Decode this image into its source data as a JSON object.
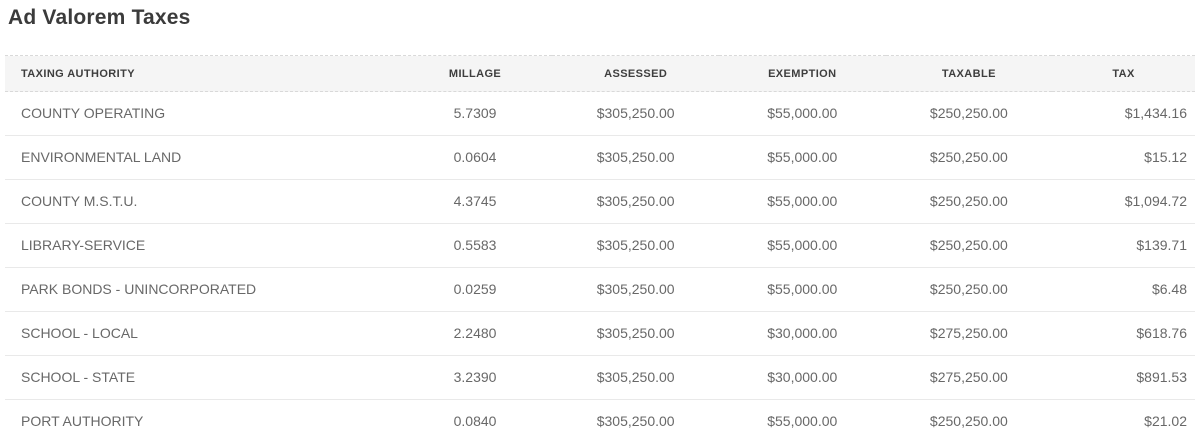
{
  "page": {
    "title": "Ad Valorem Taxes"
  },
  "colors": {
    "title_text": "#3b3b3b",
    "header_bg": "#f5f5f5",
    "header_text": "#3e3e3e",
    "body_text": "#686868",
    "row_divider": "#e9e9e9",
    "outer_dashed_border": "#d9d9d9"
  },
  "table": {
    "columns": [
      {
        "key": "authority",
        "label": "TAXING AUTHORITY"
      },
      {
        "key": "millage",
        "label": "MILLAGE"
      },
      {
        "key": "assessed",
        "label": "ASSESSED"
      },
      {
        "key": "exemption",
        "label": "EXEMPTION"
      },
      {
        "key": "taxable",
        "label": "TAXABLE"
      },
      {
        "key": "tax",
        "label": "TAX"
      }
    ],
    "rows": [
      {
        "authority": "COUNTY OPERATING",
        "millage": "5.7309",
        "assessed": "$305,250.00",
        "exemption": "$55,000.00",
        "taxable": "$250,250.00",
        "tax": "$1,434.16"
      },
      {
        "authority": "ENVIRONMENTAL LAND",
        "millage": "0.0604",
        "assessed": "$305,250.00",
        "exemption": "$55,000.00",
        "taxable": "$250,250.00",
        "tax": "$15.12"
      },
      {
        "authority": "COUNTY M.S.T.U.",
        "millage": "4.3745",
        "assessed": "$305,250.00",
        "exemption": "$55,000.00",
        "taxable": "$250,250.00",
        "tax": "$1,094.72"
      },
      {
        "authority": "LIBRARY-SERVICE",
        "millage": "0.5583",
        "assessed": "$305,250.00",
        "exemption": "$55,000.00",
        "taxable": "$250,250.00",
        "tax": "$139.71"
      },
      {
        "authority": "PARK BONDS - UNINCORPORATED",
        "millage": "0.0259",
        "assessed": "$305,250.00",
        "exemption": "$55,000.00",
        "taxable": "$250,250.00",
        "tax": "$6.48"
      },
      {
        "authority": "SCHOOL - LOCAL",
        "millage": "2.2480",
        "assessed": "$305,250.00",
        "exemption": "$30,000.00",
        "taxable": "$275,250.00",
        "tax": "$618.76"
      },
      {
        "authority": "SCHOOL - STATE",
        "millage": "3.2390",
        "assessed": "$305,250.00",
        "exemption": "$30,000.00",
        "taxable": "$275,250.00",
        "tax": "$891.53"
      },
      {
        "authority": "PORT AUTHORITY",
        "millage": "0.0840",
        "assessed": "$305,250.00",
        "exemption": "$55,000.00",
        "taxable": "$250,250.00",
        "tax": "$21.02"
      }
    ]
  }
}
